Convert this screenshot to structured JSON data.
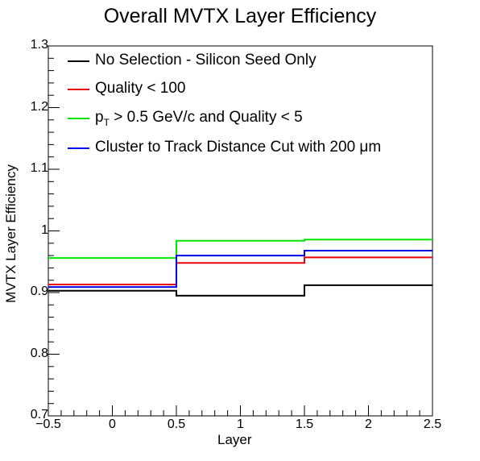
{
  "chart_data": {
    "type": "line",
    "title": "Overall MVTX Layer Efficiency",
    "xlabel": "Layer",
    "ylabel": "MVTX Layer Efficiency",
    "xlim": [
      -0.5,
      2.5
    ],
    "ylim": [
      0.7,
      1.3
    ],
    "x_ticks": [
      "−0.5",
      "0",
      "0.5",
      "1",
      "1.5",
      "2",
      "2.5"
    ],
    "x_tick_values": [
      -0.5,
      0,
      0.5,
      1,
      1.5,
      2,
      2.5
    ],
    "y_ticks": [
      "0.7",
      "0.8",
      "0.9",
      "1",
      "1.1",
      "1.2",
      "1.3"
    ],
    "y_tick_values": [
      0.7,
      0.8,
      0.9,
      1.0,
      1.1,
      1.2,
      1.3
    ],
    "bin_edges": [
      -0.5,
      0.5,
      1.5,
      2.5
    ],
    "legend_position": "top-left",
    "grid": false,
    "series": [
      {
        "name": "No Selection - Silicon Seed Only",
        "color": "#000000",
        "values": [
          0.903,
          0.895,
          0.912
        ]
      },
      {
        "name": "Quality < 100",
        "color": "#e8000b",
        "values": [
          0.913,
          0.948,
          0.957
        ]
      },
      {
        "name_parts": [
          "p",
          "T",
          " > 0.5 GeV/c and Quality < 5"
        ],
        "color": "#00e800",
        "values": [
          0.956,
          0.984,
          0.986
        ]
      },
      {
        "name": "Cluster to Track Distance Cut with 200   μm",
        "color": "#0000e8",
        "values": [
          0.909,
          0.96,
          0.968
        ]
      }
    ]
  }
}
